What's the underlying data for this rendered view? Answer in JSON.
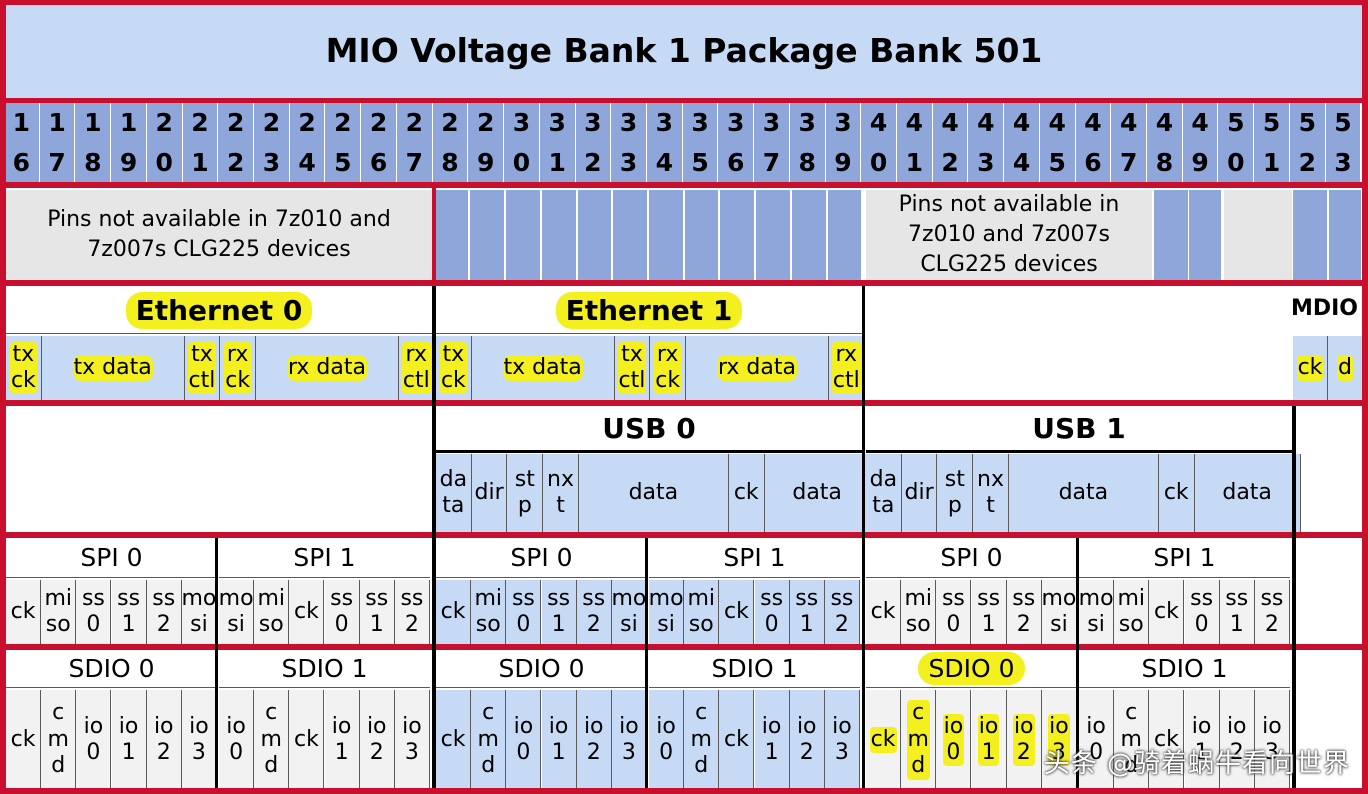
{
  "title": "MIO Voltage Bank 1 Package Bank 501",
  "pins": [
    [
      "1",
      "6"
    ],
    [
      "1",
      "7"
    ],
    [
      "1",
      "8"
    ],
    [
      "1",
      "9"
    ],
    [
      "2",
      "0"
    ],
    [
      "2",
      "1"
    ],
    [
      "2",
      "2"
    ],
    [
      "2",
      "3"
    ],
    [
      "2",
      "4"
    ],
    [
      "2",
      "5"
    ],
    [
      "2",
      "6"
    ],
    [
      "2",
      "7"
    ],
    [
      "2",
      "8"
    ],
    [
      "2",
      "9"
    ],
    [
      "3",
      "0"
    ],
    [
      "3",
      "1"
    ],
    [
      "3",
      "2"
    ],
    [
      "3",
      "3"
    ],
    [
      "3",
      "4"
    ],
    [
      "3",
      "5"
    ],
    [
      "3",
      "6"
    ],
    [
      "3",
      "7"
    ],
    [
      "3",
      "8"
    ],
    [
      "3",
      "9"
    ],
    [
      "4",
      "0"
    ],
    [
      "4",
      "1"
    ],
    [
      "4",
      "2"
    ],
    [
      "4",
      "3"
    ],
    [
      "4",
      "4"
    ],
    [
      "4",
      "5"
    ],
    [
      "4",
      "6"
    ],
    [
      "4",
      "7"
    ],
    [
      "4",
      "8"
    ],
    [
      "4",
      "9"
    ],
    [
      "5",
      "0"
    ],
    [
      "5",
      "1"
    ],
    [
      "5",
      "2"
    ],
    [
      "5",
      "3"
    ]
  ],
  "availability": {
    "note_left": "Pins not available in 7z010 and 7z007s CLG225 devices",
    "note_right": "Pins not available in 7z010 and 7z007s CLG225 devices"
  },
  "ethernet": {
    "eth0_label": "Ethernet 0",
    "eth1_label": "Ethernet 1",
    "mdio_label": "MDIO",
    "eth0_signals": [
      "tx ck",
      "tx data",
      "tx ctl",
      "rx ck",
      "rx data",
      "rx ctl"
    ],
    "eth1_signals": [
      "tx ck",
      "tx data",
      "tx ctl",
      "rx ck",
      "rx data",
      "rx ctl"
    ],
    "mdio_signals": [
      "ck",
      "d"
    ]
  },
  "usb": {
    "usb0_label": "USB 0",
    "usb1_label": "USB 1",
    "usb0_signals": [
      "da ta",
      "dir",
      "st p",
      "nx t",
      "data",
      "ck",
      "data"
    ],
    "usb1_signals": [
      "da ta",
      "dir",
      "st p",
      "nx t",
      "data",
      "ck",
      "data"
    ]
  },
  "spi": {
    "labels": [
      "SPI 0",
      "SPI 1",
      "SPI 0",
      "SPI 1",
      "SPI 0",
      "SPI 1"
    ],
    "signals": [
      [
        "ck",
        "mi so",
        "ss 0",
        "ss 1",
        "ss 2",
        "mo si"
      ],
      [
        "mo si",
        "mi so",
        "ck",
        "ss 0",
        "ss 1",
        "ss 2"
      ],
      [
        "ck",
        "mi so",
        "ss 0",
        "ss 1",
        "ss 2",
        "mo si"
      ],
      [
        "mo si",
        "mi so",
        "ck",
        "ss 0",
        "ss 1",
        "ss 2"
      ],
      [
        "ck",
        "mi so",
        "ss 0",
        "ss 1",
        "ss 2",
        "mo si"
      ],
      [
        "mo si",
        "mi so",
        "ck",
        "ss 0",
        "ss 1",
        "ss 2"
      ]
    ]
  },
  "sdio": {
    "labels": [
      "SDIO 0",
      "SDIO 1",
      "SDIO 0",
      "SDIO 1",
      "SDIO 0",
      "SDIO 1"
    ],
    "signals": [
      [
        "ck",
        "c m d",
        "io 0",
        "io 1",
        "io 2",
        "io 3"
      ],
      [
        "io 0",
        "c m d",
        "ck",
        "io 1",
        "io 2",
        "io 3"
      ],
      [
        "ck",
        "c m d",
        "io 0",
        "io 1",
        "io 2",
        "io 3"
      ],
      [
        "io 0",
        "c m d",
        "ck",
        "io 1",
        "io 2",
        "io 3"
      ],
      [
        "ck",
        "c m d",
        "io 0",
        "io 1",
        "io 2",
        "io 3"
      ],
      [
        "io 0",
        "c m d",
        "ck",
        "io 1",
        "io 2",
        "io 3"
      ]
    ]
  },
  "watermark": "头条 @骑着蜗牛看向世界",
  "colors": {
    "pin_blue": "#8ea6da",
    "signal_blue": "#c6d9f5",
    "highlight": "#f4f020",
    "frame_red": "#c8102e",
    "unavailable_gray": "#e6e6e6"
  }
}
